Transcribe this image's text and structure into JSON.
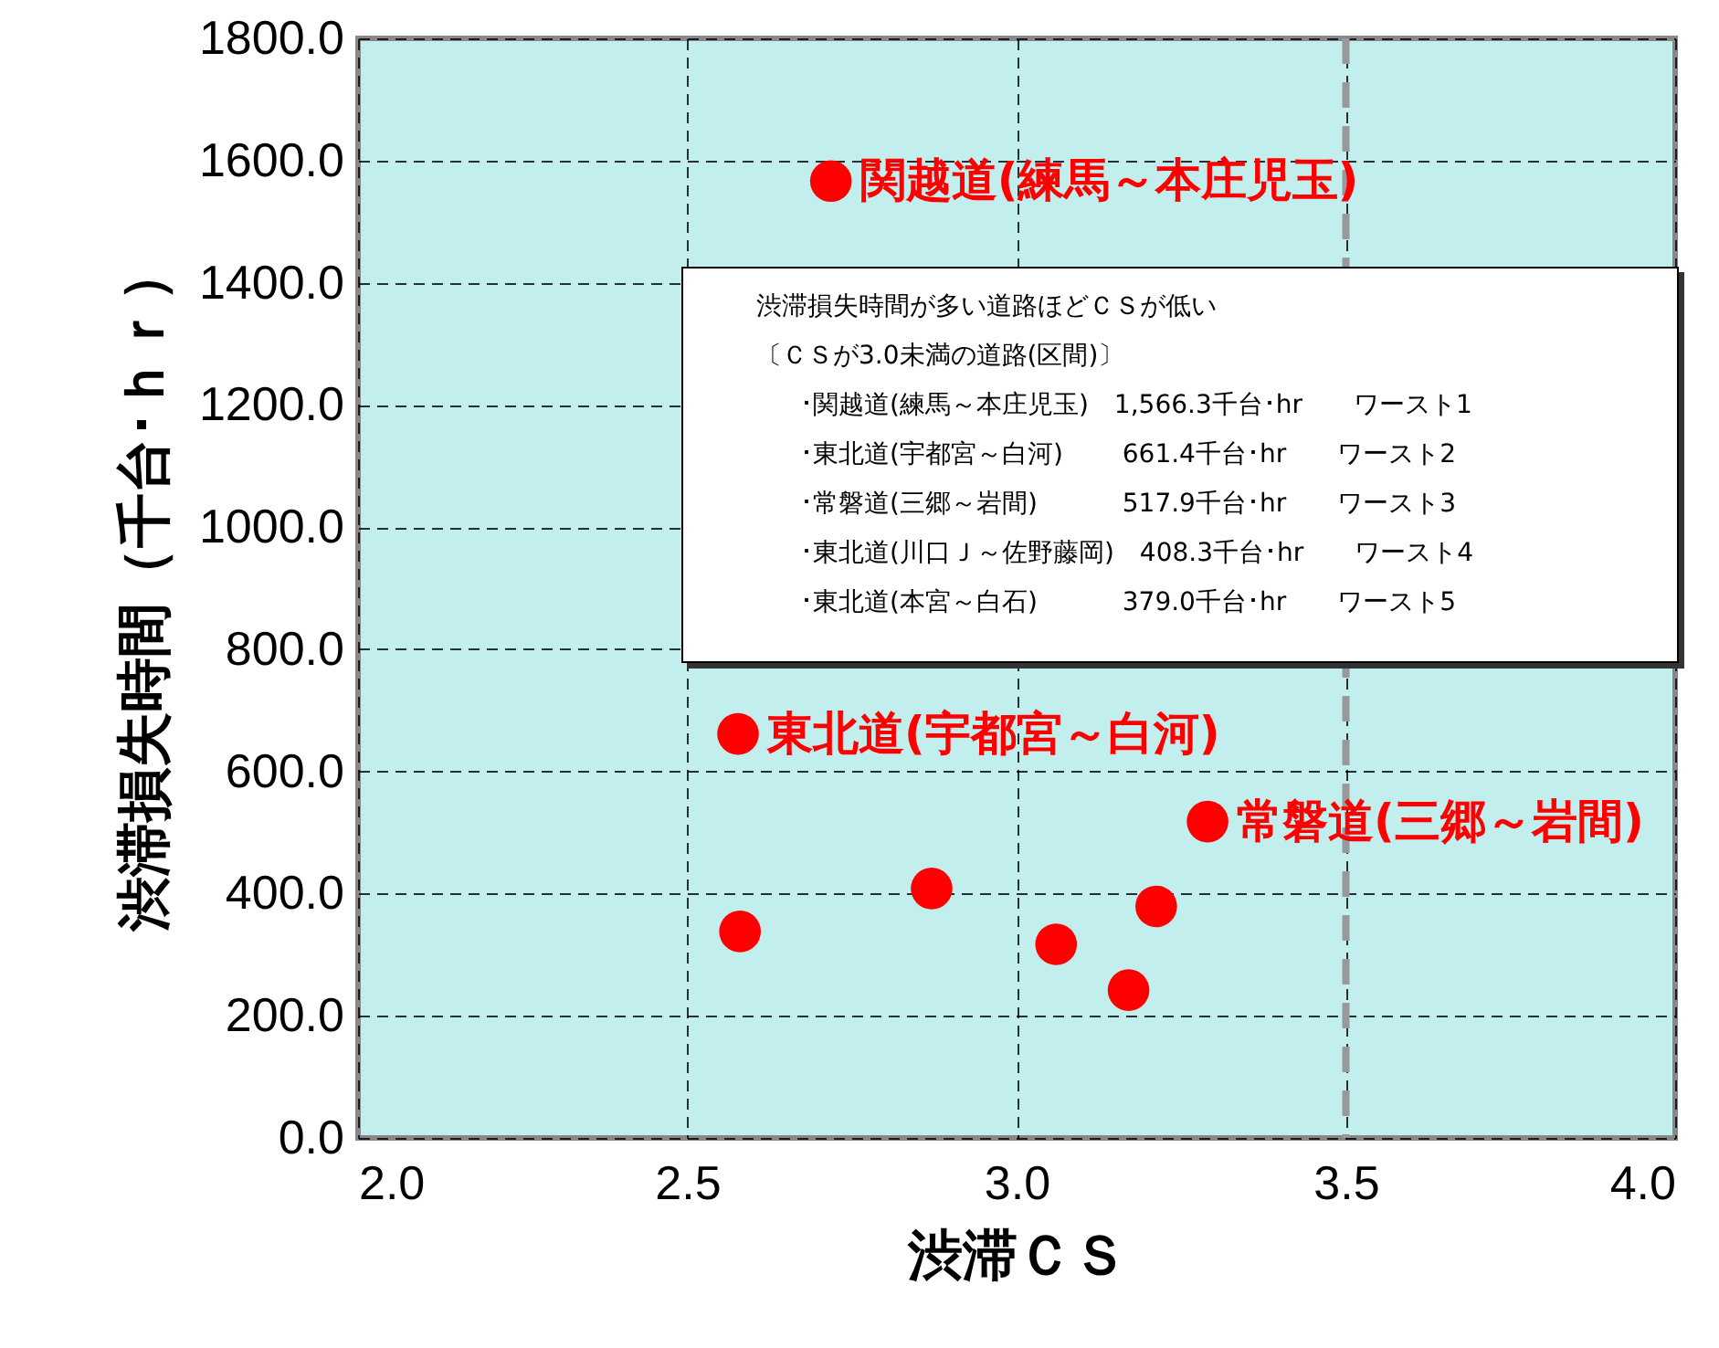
{
  "chart_data": {
    "type": "scatter",
    "xlabel": "渋滞ＣＳ",
    "ylabel": "渋滞損失時間（千台･ｈｒ）",
    "x": [
      2.718,
      2.577,
      3.29,
      2.871,
      3.212,
      2.58,
      3.06,
      3.17
    ],
    "series": [
      {
        "color": "#ff0000",
        "values": [
          1566.3,
          661.4,
          517.9,
          408.3,
          379.0,
          338,
          317,
          242
        ]
      }
    ],
    "marker": "circle",
    "xlim": [
      2,
      4
    ],
    "xticks": [
      {
        "value": 2,
        "label": "2.0"
      },
      2.5,
      {
        "value": 3,
        "label": "3.0"
      },
      3.5,
      {
        "value": 4,
        "label": "4.0"
      }
    ],
    "ylim": [
      0,
      1800
    ],
    "yticks": [
      {
        "value": 0,
        "label": "0.0"
      },
      {
        "value": 200,
        "label": "200.0"
      },
      {
        "value": 400,
        "label": "400.0"
      },
      {
        "value": 600,
        "label": "600.0"
      },
      {
        "value": 800,
        "label": "800.0"
      },
      {
        "value": 1000,
        "label": "1000.0"
      },
      {
        "value": 1200,
        "label": "1200.0"
      },
      {
        "value": 1400,
        "label": "1400.0"
      },
      {
        "value": 1600,
        "label": "1600.0"
      },
      {
        "value": 1800,
        "label": "1800.0"
      }
    ],
    "grid": true,
    "legend": false,
    "ref_lines": [
      {
        "axis": "x",
        "value": 3.5,
        "color": "#999999",
        "line_style": "dashed"
      }
    ],
    "annotations": [
      {
        "text": "関越道(練馬～本庄児玉)",
        "x": 2.718,
        "y": 1566.3
      },
      {
        "text": "東北道(宇都宮～白河)",
        "x": 2.577,
        "y": 661.4
      },
      {
        "text": "常磐道(三郷～岩間)",
        "x": 3.29,
        "y": 517.9
      },
      "渋滞損失時間が多い道路ほどＣＳが低い",
      "〔ＣＳが3.0未満の道路(区間)〕",
      "･関越道(練馬～本庄児玉)　1,566.3千台･hr　　ワースト1",
      "･東北道(宇都宮～白河)　　 661.4千台･hr　　ワースト2",
      "･常磐道(三郷～岩間)　　　 517.9千台･hr　　ワースト3",
      "･東北道(川口Ｊ～佐野藤岡)　408.3千台･hr　　ワースト4",
      "･東北道(本宮～白石)　　　 379.0千台･hr　　ワースト5"
    ]
  }
}
